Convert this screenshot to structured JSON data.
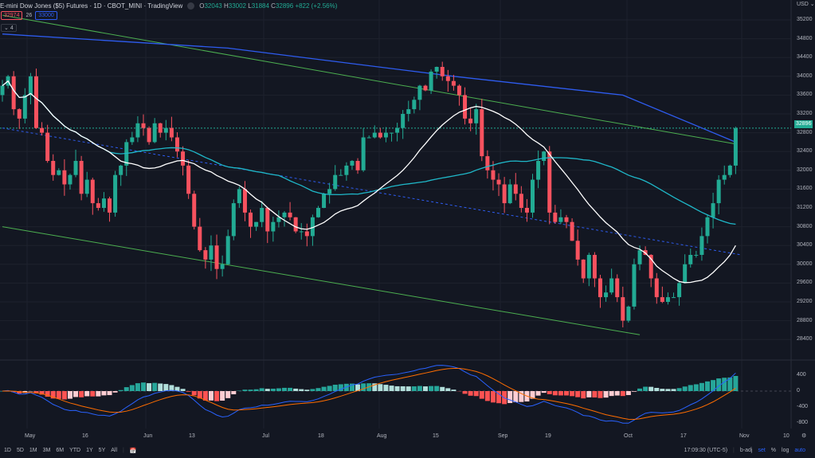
{
  "header": {
    "title": "E-mini Dow Jones ($5) Futures · 1D · CBOT_MINI · TradingView",
    "o": "32043",
    "h": "33002",
    "l": "31884",
    "c": "32896",
    "chg": "+822 (+2.56%)",
    "o_l": "O",
    "h_l": "H",
    "l_l": "L",
    "c_l": "C"
  },
  "legend": {
    "ma1": "32974",
    "num": "26",
    "ma2": "33000",
    "collapse": "4"
  },
  "currency": "USD",
  "last_price": "32896",
  "colors": {
    "up": "#22ab94",
    "down": "#f7525f",
    "bg": "#131722",
    "ma_white": "#ffffff",
    "ma_teal": "#1fb8c9",
    "ma_blue": "#2e5cf0",
    "trend": "#4caf50"
  },
  "price_ticks": [
    "35200",
    "34800",
    "34400",
    "34000",
    "33600",
    "33200",
    "32800",
    "32400",
    "32000",
    "31600",
    "31200",
    "30800",
    "30400",
    "30000",
    "29600",
    "29200",
    "28800",
    "28400"
  ],
  "macd_ticks": [
    "400",
    "0",
    "-400",
    "-800"
  ],
  "time_labels": [
    "May",
    "16",
    "Jun",
    "13",
    "Jul",
    "18",
    "Aug",
    "15",
    "Sep",
    "19",
    "Oct",
    "17",
    "Nov",
    "10"
  ],
  "toolbar": {
    "ranges": [
      "1D",
      "5D",
      "1M",
      "3M",
      "6M",
      "YTD",
      "1Y",
      "5Y",
      "All"
    ],
    "time": "17:09:30 (UTC-5)",
    "badj": "b-adj",
    "set": "set",
    "pct": "%",
    "log": "log",
    "auto": "auto"
  },
  "chart_data": {
    "type": "candlestick",
    "closes": [
      33800,
      34000,
      33300,
      33100,
      33600,
      34000,
      32900,
      32800,
      32200,
      31900,
      32000,
      31700,
      31900,
      32200,
      31500,
      31800,
      31300,
      31200,
      31400,
      31100,
      31900,
      32100,
      32600,
      32700,
      33000,
      32900,
      32600,
      33000,
      32800,
      32900,
      32700,
      32400,
      32100,
      31500,
      30800,
      30300,
      30100,
      30400,
      29900,
      30000,
      30600,
      31300,
      31600,
      31100,
      30800,
      30900,
      31200,
      30700,
      30900,
      31000,
      31100,
      31000,
      30700,
      30700,
      30600,
      31000,
      31200,
      31500,
      31600,
      31900,
      31900,
      32100,
      32200,
      32000,
      32700,
      32700,
      32800,
      32700,
      32800,
      32800,
      32900,
      33200,
      33300,
      33500,
      33800,
      33700,
      34100,
      34200,
      34000,
      33900,
      33800,
      33600,
      33100,
      33000,
      33300,
      32300,
      32000,
      31800,
      31700,
      31300,
      31700,
      31500,
      31200,
      31100,
      31800,
      32200,
      32400,
      31100,
      30900,
      31000,
      30900,
      30500,
      30100,
      29700,
      30200,
      29700,
      29300,
      29400,
      29700,
      29300,
      28800,
      29100,
      30000,
      30300,
      30200,
      29700,
      29300,
      29200,
      29300,
      29300,
      29600,
      30000,
      30200,
      30200,
      30600,
      31000,
      31300,
      31800,
      31900,
      32100,
      32896
    ],
    "blue_ma": [
      [
        0,
        34900
      ],
      [
        40,
        34600
      ],
      [
        80,
        34000
      ],
      [
        110,
        33600
      ],
      [
        130,
        32600
      ]
    ],
    "trendlines": [
      {
        "name": "upper",
        "from": [
          0,
          35300
        ],
        "to": [
          130,
          32560
        ]
      },
      {
        "name": "lower",
        "from": [
          0,
          30800
        ],
        "to": [
          113,
          28500
        ]
      },
      {
        "name": "dashed",
        "from": [
          0,
          32900
        ],
        "to": [
          131,
          30200
        ]
      }
    ],
    "price_range": [
      28000,
      35400
    ],
    "macd_range": [
      -900,
      600
    ]
  }
}
